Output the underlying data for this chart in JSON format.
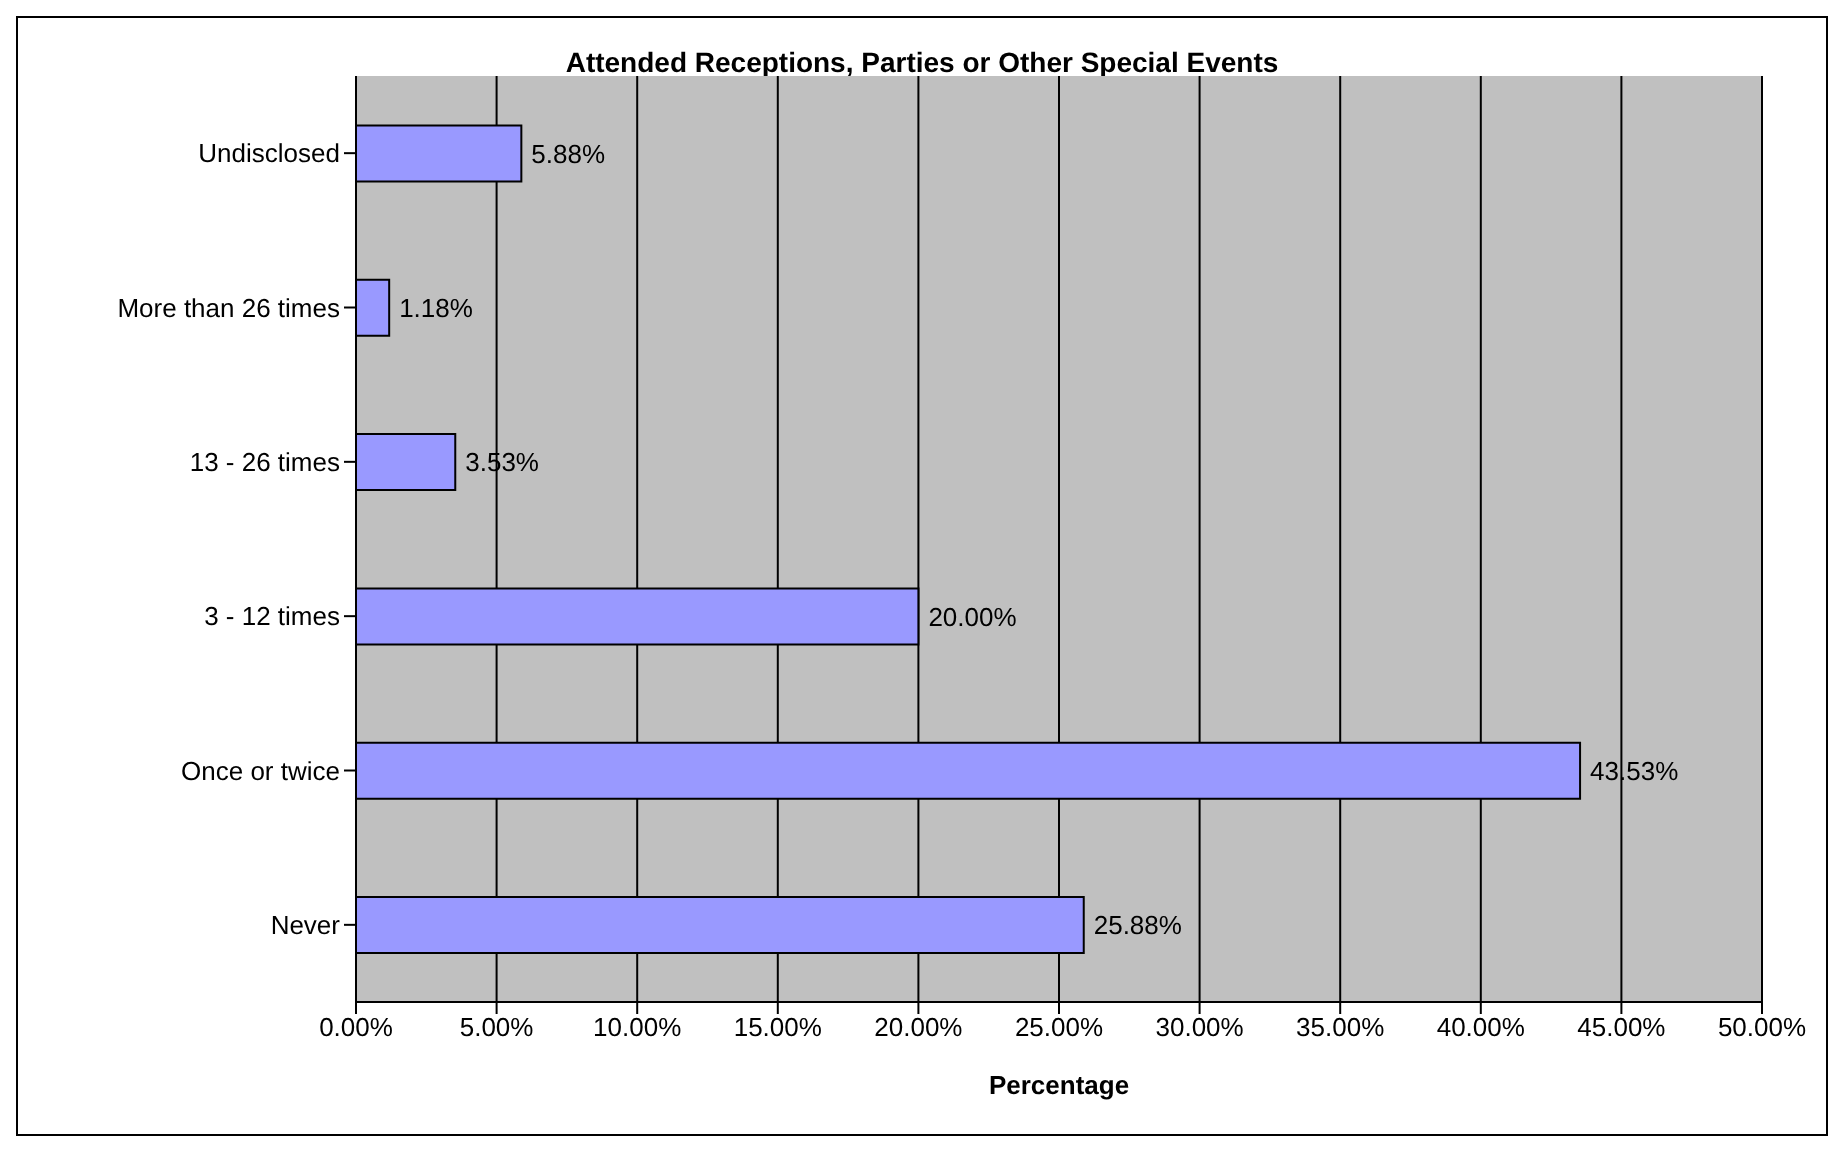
{
  "chart_data": {
    "type": "bar",
    "orientation": "horizontal",
    "title": "Attended Receptions, Parties or Other Special Events",
    "xlabel": "Percentage",
    "categories": [
      "Undisclosed",
      "More than 26 times",
      "13 - 26 times",
      "3 - 12 times",
      "Once or twice",
      "Never"
    ],
    "values": [
      5.88,
      1.18,
      3.53,
      20.0,
      43.53,
      25.88
    ],
    "value_labels": [
      "5.88%",
      "1.18%",
      "3.53%",
      "20.00%",
      "43.53%",
      "25.88%"
    ],
    "color": "#9999ff",
    "xlim": [
      0,
      50
    ],
    "xticks": [
      {
        "value": 0,
        "label": "0.00%"
      },
      {
        "value": 5,
        "label": "5.00%"
      },
      {
        "value": 10,
        "label": "10.00%"
      },
      {
        "value": 15,
        "label": "15.00%"
      },
      {
        "value": 20,
        "label": "20.00%"
      },
      {
        "value": 25,
        "label": "25.00%"
      },
      {
        "value": 30,
        "label": "30.00%"
      },
      {
        "value": 35,
        "label": "35.00%"
      },
      {
        "value": 40,
        "label": "40.00%"
      },
      {
        "value": 45,
        "label": "45.00%"
      },
      {
        "value": 50,
        "label": "50.00%"
      }
    ],
    "grid": "x",
    "legend": false
  }
}
